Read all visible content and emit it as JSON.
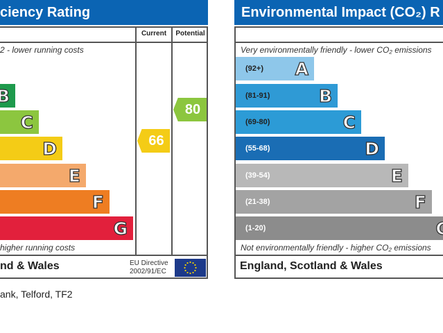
{
  "energy": {
    "title": "ciency Rating",
    "col_current": "Current",
    "col_potential": "Potential",
    "top_note": "2 - lower running costs",
    "bottom_note": "higher running costs",
    "bands": [
      {
        "letter": "B",
        "color": "#1e9a4c"
      },
      {
        "letter": "C",
        "color": "#8cc63f"
      },
      {
        "letter": "D",
        "color": "#f4cc16"
      },
      {
        "letter": "E",
        "color": "#f4a96c"
      },
      {
        "letter": "F",
        "color": "#ee7d22"
      },
      {
        "letter": "G",
        "color": "#e2203c"
      }
    ],
    "current": {
      "value": "66",
      "color": "#f4cc16"
    },
    "potential": {
      "value": "80",
      "color": "#8cc63f"
    },
    "footer": "nd & Wales",
    "eu_line1": "EU Directive",
    "eu_line2": "2002/91/EC"
  },
  "environment": {
    "title": "Environmental Impact (CO₂) R",
    "top_note": "Very environmentally friendly - lower CO₂ emissions",
    "bottom_note": "Not environmentally friendly - higher CO₂ emissions",
    "bands": [
      {
        "letter": "A",
        "range": "(92+)",
        "color": "#8ec7ea"
      },
      {
        "letter": "B",
        "range": "(81-91)",
        "color": "#2f9ad5"
      },
      {
        "letter": "C",
        "range": "(69-80)",
        "color": "#2c9bd6"
      },
      {
        "letter": "D",
        "range": "(55-68)",
        "color": "#1a6db4"
      },
      {
        "letter": "E",
        "range": "(39-54)",
        "color": "#b8b8b8"
      },
      {
        "letter": "F",
        "range": "(21-38)",
        "color": "#a3a3a3"
      },
      {
        "letter": "G",
        "range": "(1-20)",
        "color": "#8c8c8c"
      }
    ],
    "footer": "England, Scotland & Wales"
  },
  "address": "ank, Telford, TF2"
}
